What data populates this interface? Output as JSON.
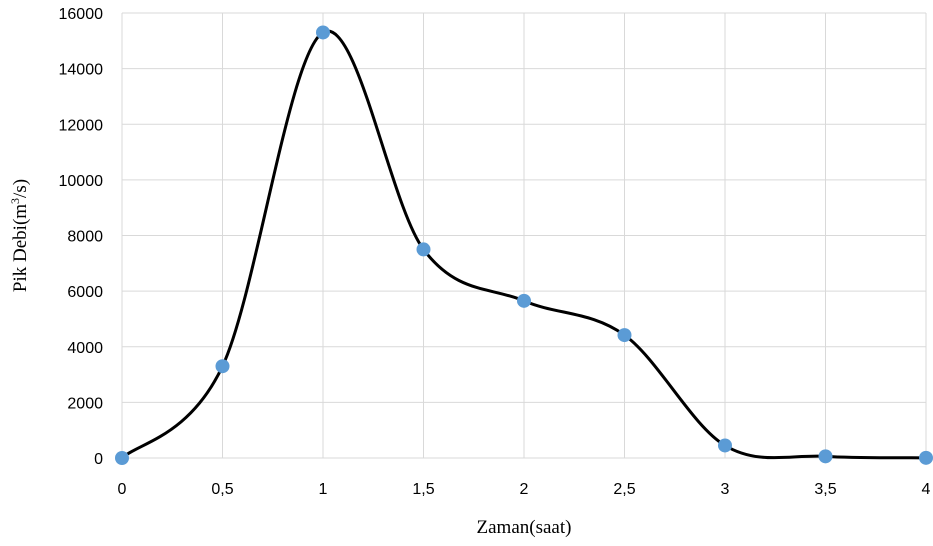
{
  "chart_data": {
    "type": "line",
    "smooth": true,
    "markers": true,
    "xlabel": "Zaman(saat)",
    "ylabel": {
      "prefix": "Pik Debi(m",
      "superscript": "3",
      "suffix": "/s)"
    },
    "xlim": [
      0,
      4
    ],
    "ylim": [
      0,
      16000
    ],
    "x_ticks": [
      "0",
      "0,5",
      "1",
      "1,5",
      "2",
      "2,5",
      "3",
      "3,5",
      "4"
    ],
    "y_ticks": [
      "0",
      "2000",
      "4000",
      "6000",
      "8000",
      "10000",
      "12000",
      "14000",
      "16000"
    ],
    "grid": "vertical and horizontal",
    "series": [
      {
        "x": [
          0,
          0.5,
          1,
          1.5,
          2,
          2.5,
          3,
          3.5,
          4
        ],
        "y": [
          0,
          3300,
          15300,
          7500,
          5650,
          4420,
          450,
          60,
          5
        ]
      }
    ],
    "colors": {
      "line": "#000000",
      "marker": "#5b9bd5",
      "grid": "#d9d9d9"
    }
  }
}
